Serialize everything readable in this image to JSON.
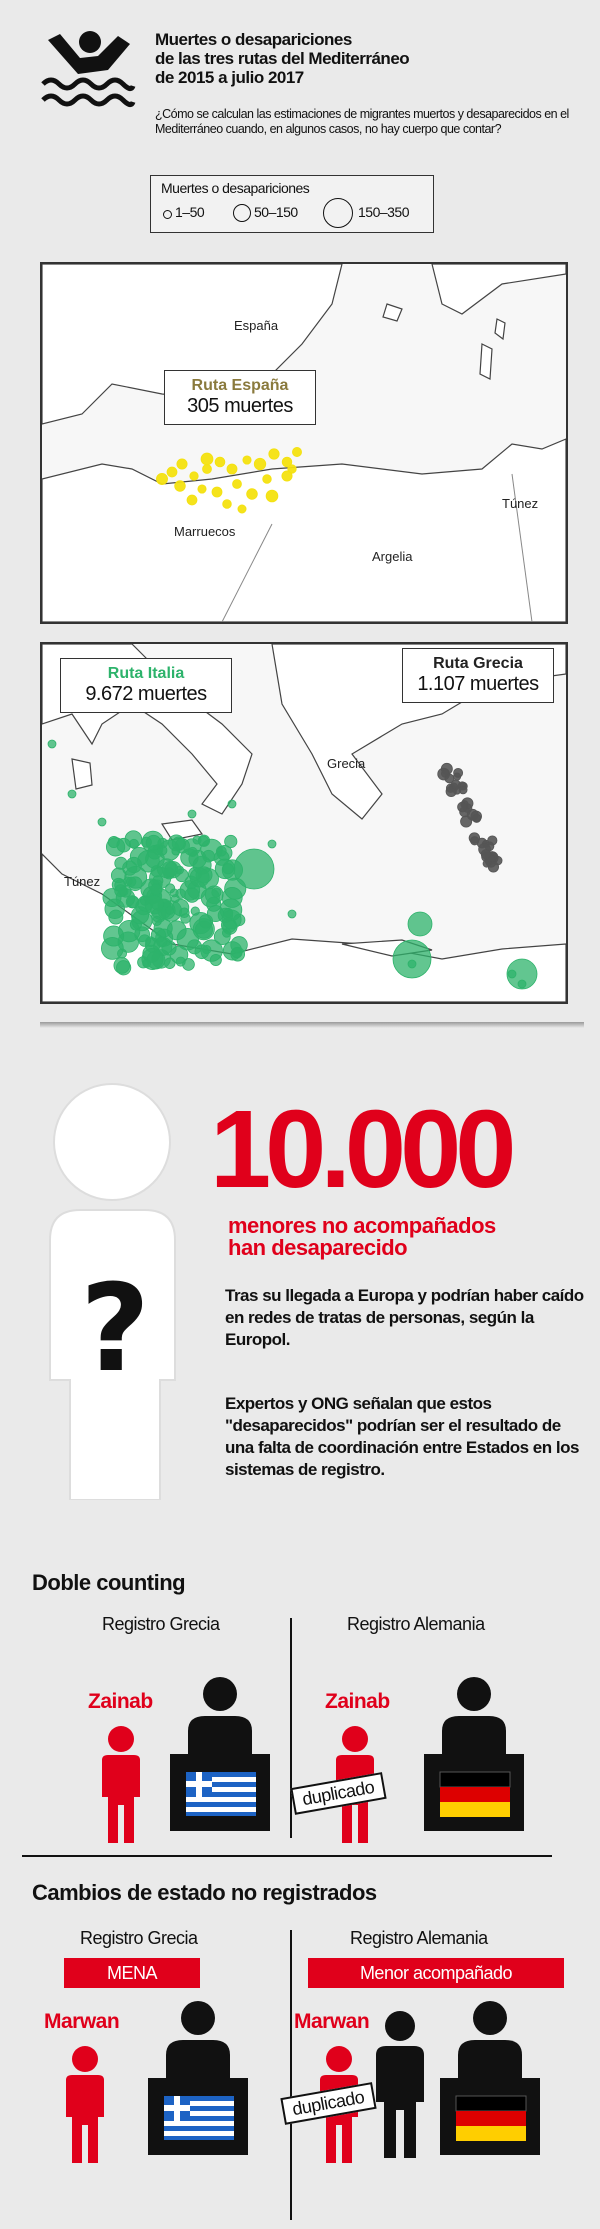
{
  "header": {
    "title_line1": "Muertes o desapariciones",
    "title_line2": "de las tres rutas del Mediterráneo",
    "title_line3": "de 2015 a julio 2017",
    "subtitle": "¿Cómo se calculan las estimaciones de migrantes muertos y desaparecidos en el Mediterráneo cuando, en algunos casos, no hay cuerpo que contar?",
    "icon": "drowning-person-icon"
  },
  "legend": {
    "title": "Muertes o desapariciones",
    "items": [
      "1–50",
      "50–150",
      "150–350"
    ]
  },
  "map_west": {
    "labels": {
      "spain": "España",
      "morocco": "Marruecos",
      "algeria": "Argelia",
      "tunisia": "Túnez"
    },
    "callout": {
      "route": "Ruta España",
      "deaths": "305 muertes"
    },
    "route_color": "#f4e10f"
  },
  "map_east": {
    "labels": {
      "greece": "Grecia",
      "tunisia": "Túnez"
    },
    "callout_italy": {
      "route": "Ruta Italia",
      "deaths": "9.672 muertes"
    },
    "callout_greece": {
      "route": "Ruta Grecia",
      "deaths": "1.107 muertes"
    },
    "italy_color": "#2db36b",
    "greece_color": "#555555"
  },
  "minors": {
    "number": "10.000",
    "headline_line1": "menores no acompañados",
    "headline_line2": "han desaparecido",
    "para1": "Tras su llegada a Europa y podrían haber caído en redes de tratas de personas, según la Europol.",
    "para2": "Expertos y ONG señalan que estos \"desaparecidos\" podrían ser el resul­tado de una falta de coordinación entre Estados en los sistemas de registro."
  },
  "double_counting": {
    "heading": "Doble counting",
    "left_registry": "Registro Grecia",
    "right_registry": "Registro Alemania",
    "name_left": "Zainab",
    "name_right": "Zainab",
    "stamp": "duplicado"
  },
  "status_changes": {
    "heading": "Cambios de estado no registrados",
    "left_registry": "Registro Grecia",
    "right_registry": "Registro Alemania",
    "left_tag": "MENA",
    "right_tag": "Menor acompañado",
    "name_left": "Marwan",
    "name_right": "Marwan",
    "stamp": "duplicado"
  },
  "colors": {
    "accent_red": "#e0001b",
    "ink": "#111111"
  }
}
